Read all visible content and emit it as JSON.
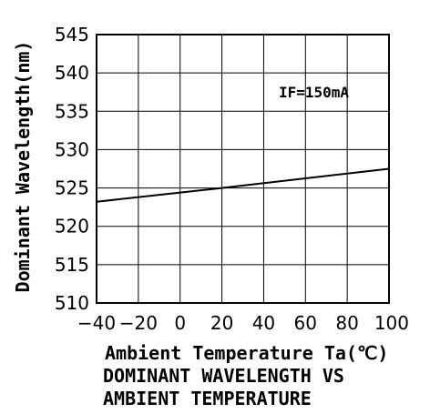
{
  "chart_data": {
    "type": "line",
    "title": "DOMINANT WAVELENGTH VS AMBIENT TEMPERATURE",
    "title_lines": [
      "DOMINANT WAVELENGTH VS",
      "AMBIENT TEMPERATURE"
    ],
    "xlabel": "Ambient Temperature Ta(℃)",
    "ylabel": "Dominant Wavelength(nm)",
    "annotation": "IF=150mA",
    "xlim": [
      -40,
      100
    ],
    "ylim": [
      510,
      545
    ],
    "xticks": [
      -40,
      -20,
      0,
      20,
      40,
      60,
      80,
      100
    ],
    "xtick_labels": [
      "−40",
      "−20",
      "0",
      "20",
      "40",
      "60",
      "80",
      "100"
    ],
    "yticks": [
      510,
      515,
      520,
      525,
      530,
      535,
      540,
      545
    ],
    "grid": true,
    "series": [
      {
        "x": [
          -40,
          20,
          100
        ],
        "y": [
          523.2,
          525.0,
          527.5
        ]
      }
    ]
  }
}
